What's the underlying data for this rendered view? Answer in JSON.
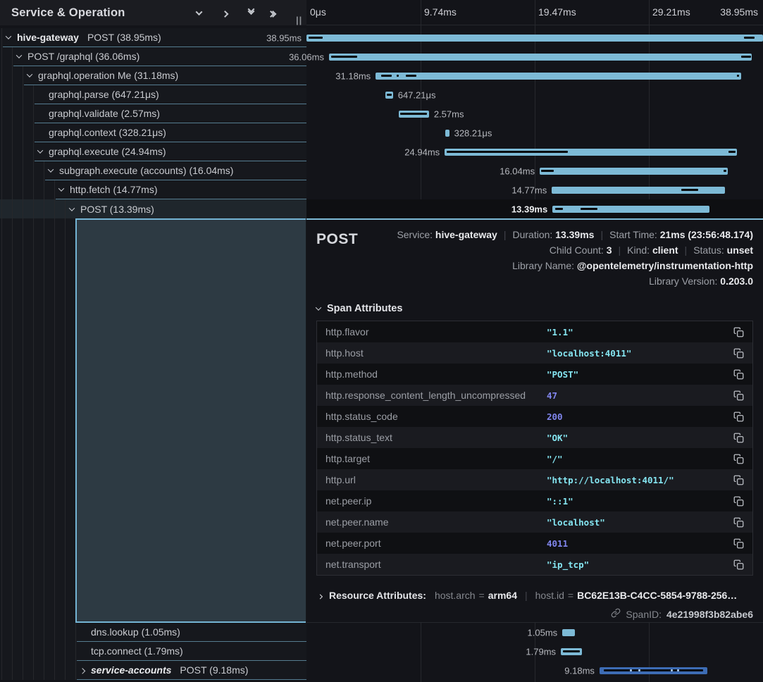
{
  "window": {
    "title": "Service & Operation",
    "splitter_handle": "||"
  },
  "toolbar": {
    "icons": [
      "collapse-level-icon",
      "expand-level-icon",
      "collapse-all-icon",
      "expand-all-icon"
    ]
  },
  "timeline": {
    "ticks": [
      "0μs",
      "9.74ms",
      "19.47ms",
      "29.21ms",
      "38.95ms"
    ],
    "total_ms": 38.95
  },
  "colors": {
    "bar": "#7dbad6",
    "bar_alt": "#3d6cb4",
    "string_value": "#85e6f2",
    "number_value": "#8186ee",
    "selection_block": "#2d3a43"
  },
  "spans": [
    {
      "service": "hive-gateway",
      "label": "POST (38.95ms)",
      "depth": 0,
      "chevron": "down",
      "duration_label": "38.95ms",
      "label_side": "left",
      "start_ms": 0,
      "dur_ms": 38.95,
      "color": "bar",
      "ticks": [
        [
          0.2,
          1.4
        ],
        [
          37.3,
          38.2
        ]
      ]
    },
    {
      "label": "POST /graphql (36.06ms)",
      "depth": 1,
      "chevron": "down",
      "duration_label": "36.06ms",
      "label_side": "left",
      "start_ms": 1.92,
      "dur_ms": 36.06,
      "color": "bar",
      "ticks": [
        [
          2.1,
          4.3
        ],
        [
          37.1,
          37.9
        ]
      ]
    },
    {
      "label": "graphql.operation Me (31.18ms)",
      "depth": 2,
      "chevron": "down",
      "duration_label": "31.18ms",
      "label_side": "left",
      "start_ms": 5.9,
      "dur_ms": 31.18,
      "color": "bar",
      "ticks": [
        [
          6.4,
          7.3
        ],
        [
          7.7,
          7.9
        ],
        [
          8.5,
          9.4
        ],
        [
          36.7,
          36.9
        ]
      ]
    },
    {
      "label": "graphql.parse (647.21μs)",
      "depth": 3,
      "chevron": null,
      "duration_label": "647.21μs",
      "label_side": "right",
      "start_ms": 6.73,
      "dur_ms": 0.647,
      "color": "bar",
      "ticks": [
        [
          6.85,
          7.25
        ]
      ]
    },
    {
      "label": "graphql.validate (2.57ms)",
      "depth": 3,
      "chevron": null,
      "duration_label": "2.57ms",
      "label_side": "right",
      "start_ms": 7.88,
      "dur_ms": 2.57,
      "color": "bar",
      "ticks": [
        [
          8.0,
          10.3
        ]
      ]
    },
    {
      "label": "graphql.context (328.21μs)",
      "depth": 3,
      "chevron": null,
      "duration_label": "328.21μs",
      "label_side": "right",
      "start_ms": 11.85,
      "dur_ms": 0.328,
      "color": "bar",
      "ticks": []
    },
    {
      "label": "graphql.execute (24.94ms)",
      "depth": 3,
      "chevron": "down",
      "duration_label": "24.94ms",
      "label_side": "left",
      "start_ms": 11.79,
      "dur_ms": 24.94,
      "color": "bar",
      "ticks": [
        [
          11.95,
          22.3
        ],
        [
          36.0,
          36.6
        ]
      ]
    },
    {
      "label": "subgraph.execute (accounts) (16.04ms)",
      "depth": 4,
      "chevron": "down",
      "duration_label": "16.04ms",
      "label_side": "left",
      "start_ms": 19.9,
      "dur_ms": 16.04,
      "color": "bar",
      "ticks": [
        [
          20.0,
          21.1
        ],
        [
          35.6,
          35.85
        ]
      ]
    },
    {
      "label": "http.fetch (14.77ms)",
      "depth": 5,
      "chevron": "down",
      "duration_label": "14.77ms",
      "label_side": "left",
      "start_ms": 20.93,
      "dur_ms": 14.77,
      "color": "bar",
      "ticks": [
        [
          32.0,
          33.4
        ]
      ]
    },
    {
      "label": "POST (13.39ms)",
      "depth": 6,
      "chevron": "down",
      "duration_label": "13.39ms",
      "label_side": "left",
      "start_ms": 20.99,
      "dur_ms": 13.39,
      "color": "bar",
      "ticks": [
        [
          21.2,
          21.9
        ],
        [
          23.4,
          24.8
        ]
      ],
      "selected": true
    },
    {
      "label": "dns.lookup (1.05ms)",
      "depth": 7,
      "chevron": null,
      "duration_label": "1.05ms",
      "label_side": "left",
      "start_ms": 21.83,
      "dur_ms": 1.05,
      "color": "bar",
      "ticks": []
    },
    {
      "label": "tcp.connect (1.79ms)",
      "depth": 7,
      "chevron": null,
      "duration_label": "1.79ms",
      "label_side": "left",
      "start_ms": 21.7,
      "dur_ms": 1.79,
      "color": "bar",
      "ticks": [
        [
          21.85,
          23.35
        ]
      ]
    },
    {
      "service": "service-accounts",
      "service_italic": true,
      "label": "POST (9.18ms)",
      "depth": 7,
      "chevron": "right",
      "duration_label": "9.18ms",
      "label_side": "left",
      "start_ms": 25.0,
      "dur_ms": 9.18,
      "color": "bar_alt",
      "ticks": [
        [
          25.35,
          33.85
        ]
      ],
      "dots": [
        27.6,
        28.3,
        31.1,
        31.6
      ]
    }
  ],
  "detail": {
    "title": "POST",
    "overview_lines": [
      [
        {
          "label": "Service:",
          "value": "hive-gateway"
        },
        {
          "label": "Duration:",
          "value": "13.39ms"
        },
        {
          "label": "Start Time:",
          "value": "21ms (23:56:48.174)"
        }
      ],
      [
        {
          "label": "Child Count:",
          "value": "3"
        },
        {
          "label": "Kind:",
          "value": "client"
        },
        {
          "label": "Status:",
          "value": "unset"
        }
      ],
      [
        {
          "label": "Library Name:",
          "value": "@opentelemetry/instrumentation-http"
        }
      ],
      [
        {
          "label": "Library Version:",
          "value": "0.203.0"
        }
      ]
    ],
    "span_attributes": {
      "title": "Span Attributes",
      "rows": [
        {
          "key": "http.flavor",
          "value": "\"1.1\"",
          "type": "string"
        },
        {
          "key": "http.host",
          "value": "\"localhost:4011\"",
          "type": "string"
        },
        {
          "key": "http.method",
          "value": "\"POST\"",
          "type": "string"
        },
        {
          "key": "http.response_content_length_uncompressed",
          "value": "47",
          "type": "number"
        },
        {
          "key": "http.status_code",
          "value": "200",
          "type": "number"
        },
        {
          "key": "http.status_text",
          "value": "\"OK\"",
          "type": "string"
        },
        {
          "key": "http.target",
          "value": "\"/\"",
          "type": "string"
        },
        {
          "key": "http.url",
          "value": "\"http://localhost:4011/\"",
          "type": "string"
        },
        {
          "key": "net.peer.ip",
          "value": "\"::1\"",
          "type": "string"
        },
        {
          "key": "net.peer.name",
          "value": "\"localhost\"",
          "type": "string"
        },
        {
          "key": "net.peer.port",
          "value": "4011",
          "type": "number"
        },
        {
          "key": "net.transport",
          "value": "\"ip_tcp\"",
          "type": "string"
        }
      ]
    },
    "resource_attributes": {
      "title": "Resource Attributes:",
      "pairs": [
        {
          "key": "host.arch",
          "value": "arm64"
        },
        {
          "key": "host.id",
          "value": "BC62E13B-C4CC-5854-9788-256…"
        }
      ]
    },
    "span_id": {
      "label": "SpanID:",
      "value": "4e21998f3b82abe6"
    }
  }
}
